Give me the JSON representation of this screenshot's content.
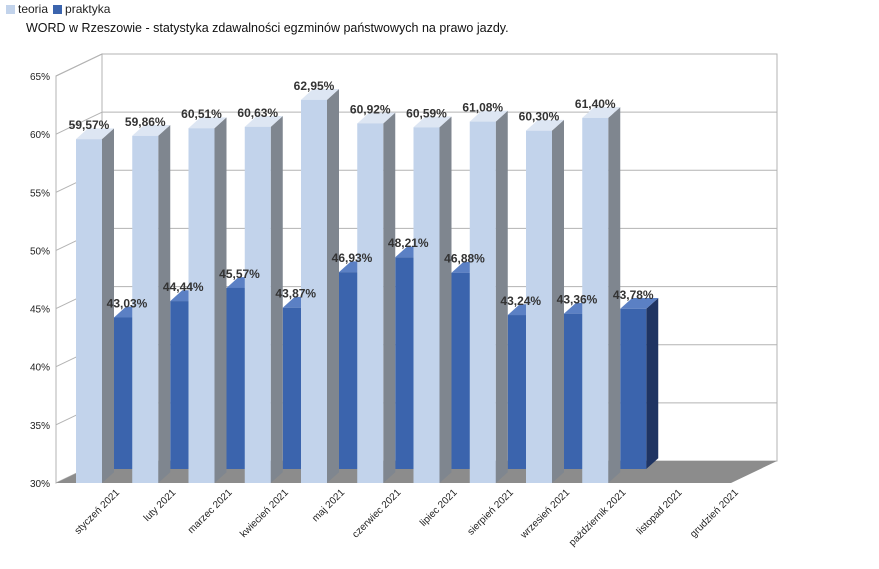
{
  "chart_data": {
    "type": "bar",
    "title": "WORD w Rzeszowie - statystyka zdawalności egzminów państwowych na prawo jazdy.",
    "xlabel": "",
    "ylabel": "",
    "categories": [
      "styczeń 2021",
      "luty 2021",
      "marzec 2021",
      "kwiecień 2021",
      "maj 2021",
      "czerwiec 2021",
      "lipiec 2021",
      "sierpień 2021",
      "wrzesień 2021",
      "październik 2021",
      "listopad 2021",
      "grudzień 2021"
    ],
    "series": [
      {
        "name": "teoria",
        "color": "#c2d3eb",
        "values": [
          59.57,
          59.86,
          60.51,
          60.63,
          62.95,
          60.92,
          60.59,
          61.08,
          60.3,
          61.4,
          null,
          null
        ],
        "labels": [
          "59,57%",
          "59,86%",
          "60,51%",
          "60,63%",
          "62,95%",
          "60,92%",
          "60,59%",
          "61,08%",
          "60,30%",
          "61,40%",
          "",
          ""
        ]
      },
      {
        "name": "praktyka",
        "color": "#3b64ad",
        "values": [
          43.03,
          44.44,
          45.57,
          43.87,
          46.93,
          48.21,
          46.88,
          43.24,
          43.36,
          43.78,
          null,
          null
        ],
        "labels": [
          "43,03%",
          "44,44%",
          "45,57%",
          "43,87%",
          "46,93%",
          "48,21%",
          "46,88%",
          "43,24%",
          "43,36%",
          "43,78%",
          "",
          ""
        ]
      }
    ],
    "yticks": [
      "30%",
      "35%",
      "40%",
      "45%",
      "50%",
      "55%",
      "60%",
      "65%"
    ],
    "ylim": [
      30,
      65
    ],
    "grid": true,
    "legend": "top-left"
  }
}
